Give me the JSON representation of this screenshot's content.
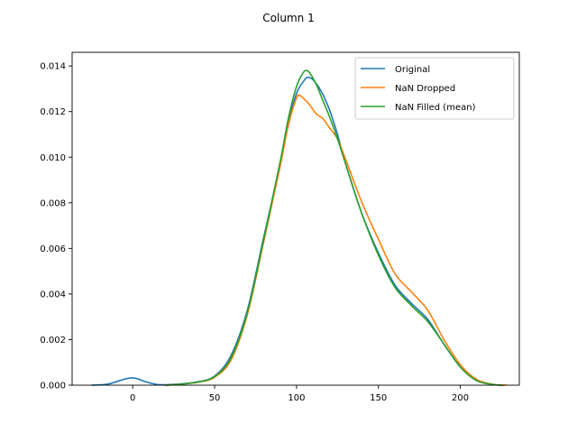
{
  "chart_data": {
    "type": "line",
    "title": "Column 1",
    "xlabel": "",
    "ylabel": "",
    "xlim": [
      -37,
      236
    ],
    "ylim": [
      0,
      0.0146
    ],
    "xticks": [
      0,
      50,
      100,
      150,
      200
    ],
    "yticks": [
      "0.000",
      "0.002",
      "0.004",
      "0.006",
      "0.008",
      "0.010",
      "0.012",
      "0.014"
    ],
    "grid": false,
    "legend_position": "top-right",
    "series": [
      {
        "name": "Original",
        "color": "#1f77b4",
        "x": [
          -25,
          -15,
          -8,
          -3,
          0,
          3,
          8,
          15,
          20,
          30,
          40,
          50,
          60,
          70,
          80,
          90,
          95,
          100,
          105,
          107,
          110,
          115,
          120,
          125,
          130,
          140,
          150,
          160,
          170,
          180,
          190,
          200,
          210,
          220,
          225
        ],
        "y": [
          0.0,
          5e-05,
          0.0002,
          0.0003,
          0.00032,
          0.00028,
          0.00015,
          3e-05,
          2e-05,
          6e-05,
          0.00015,
          0.0004,
          0.0013,
          0.0033,
          0.0065,
          0.0097,
          0.0115,
          0.0128,
          0.0134,
          0.0135,
          0.0134,
          0.0129,
          0.0121,
          0.011,
          0.0097,
          0.0075,
          0.0058,
          0.0044,
          0.0036,
          0.0029,
          0.0018,
          0.0008,
          0.0002,
          3e-05,
          0.0
        ]
      },
      {
        "name": "NaN Dropped",
        "color": "#ff7f0e",
        "x": [
          20,
          30,
          40,
          50,
          60,
          70,
          80,
          90,
          95,
          100,
          102,
          104,
          108,
          112,
          116,
          120,
          125,
          130,
          140,
          150,
          160,
          170,
          180,
          190,
          200,
          210,
          220,
          228
        ],
        "y": [
          0.0,
          5e-05,
          0.00013,
          0.00035,
          0.0011,
          0.0031,
          0.0063,
          0.0096,
          0.0114,
          0.0126,
          0.0127,
          0.0126,
          0.0123,
          0.0119,
          0.0117,
          0.0113,
          0.0108,
          0.0099,
          0.008,
          0.0064,
          0.0049,
          0.0041,
          0.0033,
          0.002,
          0.0009,
          0.00025,
          4e-05,
          0.0
        ]
      },
      {
        "name": "NaN Filled (mean)",
        "color": "#2ca02c",
        "x": [
          20,
          30,
          40,
          50,
          60,
          70,
          80,
          90,
          95,
          100,
          104,
          106,
          108,
          112,
          116,
          120,
          125,
          130,
          140,
          150,
          160,
          170,
          180,
          190,
          200,
          210,
          220,
          226
        ],
        "y": [
          0.0,
          5e-05,
          0.00014,
          0.00038,
          0.0012,
          0.0032,
          0.0064,
          0.0098,
          0.0117,
          0.0131,
          0.0137,
          0.0138,
          0.0137,
          0.0132,
          0.0125,
          0.0118,
          0.0108,
          0.0097,
          0.0075,
          0.0057,
          0.0043,
          0.0035,
          0.0028,
          0.0018,
          0.0008,
          0.0002,
          3e-05,
          0.0
        ]
      }
    ]
  }
}
